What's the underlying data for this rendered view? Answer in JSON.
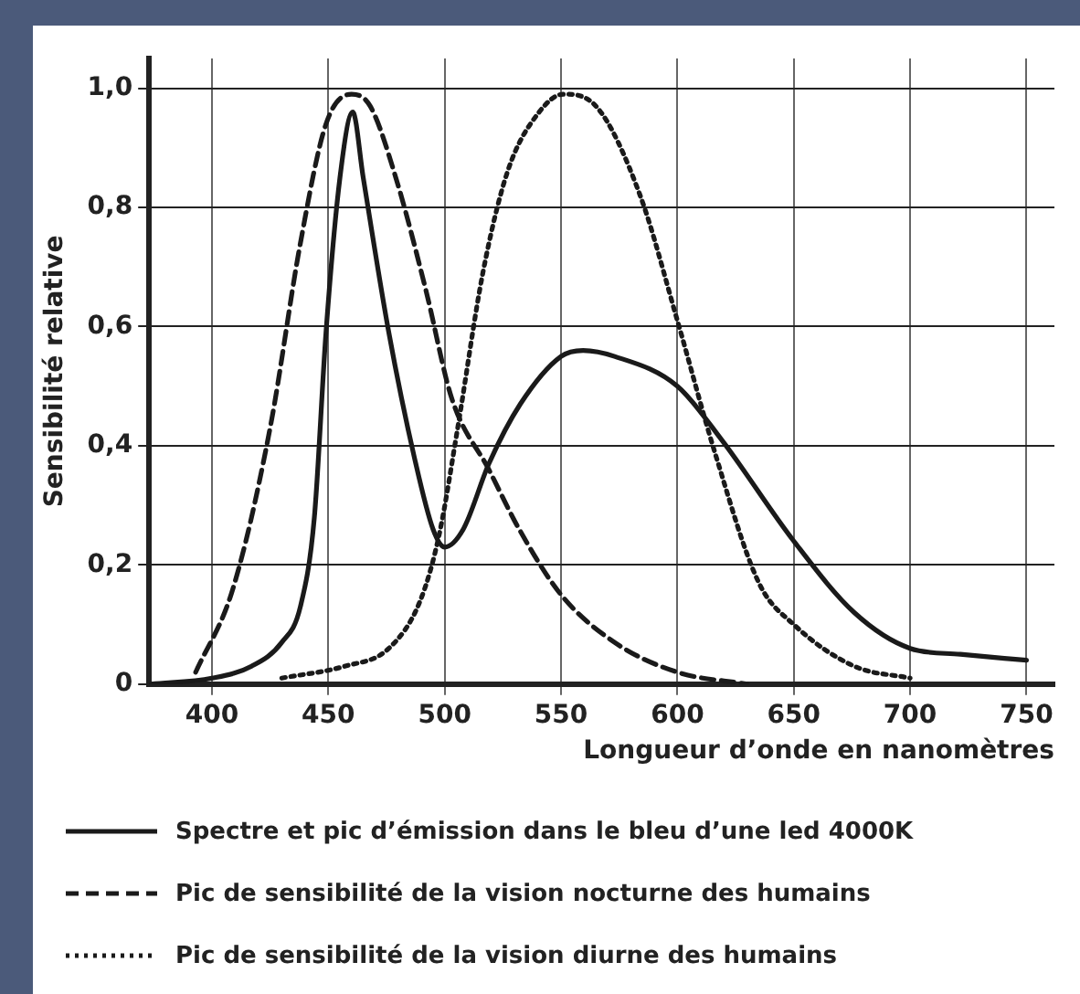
{
  "chart_data": {
    "type": "line",
    "xlabel": "Longueur d’onde en nanomètres",
    "ylabel": "Sensibilité relative",
    "xlim": [
      373,
      762
    ],
    "xticks": [
      400,
      450,
      500,
      550,
      600,
      650,
      700,
      750
    ],
    "ylim": [
      0,
      1.05
    ],
    "yticks": [
      {
        "value": 0,
        "label": "0"
      },
      {
        "value": 0.2,
        "label": "0,2"
      },
      {
        "value": 0.4,
        "label": "0,4"
      },
      {
        "value": 0.6,
        "label": "0,6"
      },
      {
        "value": 0.8,
        "label": "0,8"
      },
      {
        "value": 1,
        "label": "1,0"
      }
    ],
    "grid": true,
    "legend": "bottom",
    "marker": "none",
    "series": [
      {
        "name": "Spectre et pic d’émission dans le bleu d’une led 4000K",
        "color": "#1a1a1a",
        "line_style": "solid",
        "x": [
          374,
          400,
          417,
          430,
          438,
          444,
          449,
          455,
          460.5,
          465,
          476,
          487,
          495,
          500,
          508,
          519,
          532.5,
          550,
          559.5,
          573,
          600,
          619,
          650,
          676,
          700,
          721.6,
          750
        ],
        "values": [
          0,
          0.01,
          0.03,
          0.07,
          0.13,
          0.28,
          0.59,
          0.85,
          0.96,
          0.85,
          0.59,
          0.38,
          0.26,
          0.23,
          0.26,
          0.37,
          0.47,
          0.55,
          0.56,
          0.55,
          0.5,
          0.41,
          0.24,
          0.12,
          0.06,
          0.05,
          0.04
        ]
      },
      {
        "name": "Pic de sensibilité de la vision nocturne des humains",
        "color": "#1a1a1a",
        "line_style": "dashed",
        "x": [
          393,
          409,
          425,
          438,
          449,
          460,
          468,
          479,
          492,
          503,
          519,
          532,
          550,
          573,
          600,
          630
        ],
        "values": [
          0.02,
          0.16,
          0.43,
          0.74,
          0.94,
          0.99,
          0.97,
          0.85,
          0.66,
          0.48,
          0.36,
          0.26,
          0.15,
          0.07,
          0.02,
          0
        ]
      },
      {
        "name": "Pic de sensibilité de la vision diurne des humains",
        "color": "#1a1a1a",
        "line_style": "dotted",
        "x": [
          430,
          457,
          476,
          489.5,
          497.6,
          505.6,
          516.4,
          527,
          540.6,
          551,
          565,
          584,
          600,
          616,
          635,
          650,
          676,
          700
        ],
        "values": [
          0.01,
          0.03,
          0.06,
          0.14,
          0.25,
          0.43,
          0.69,
          0.86,
          0.96,
          0.99,
          0.97,
          0.82,
          0.61,
          0.39,
          0.17,
          0.1,
          0.03,
          0.01
        ]
      }
    ]
  }
}
